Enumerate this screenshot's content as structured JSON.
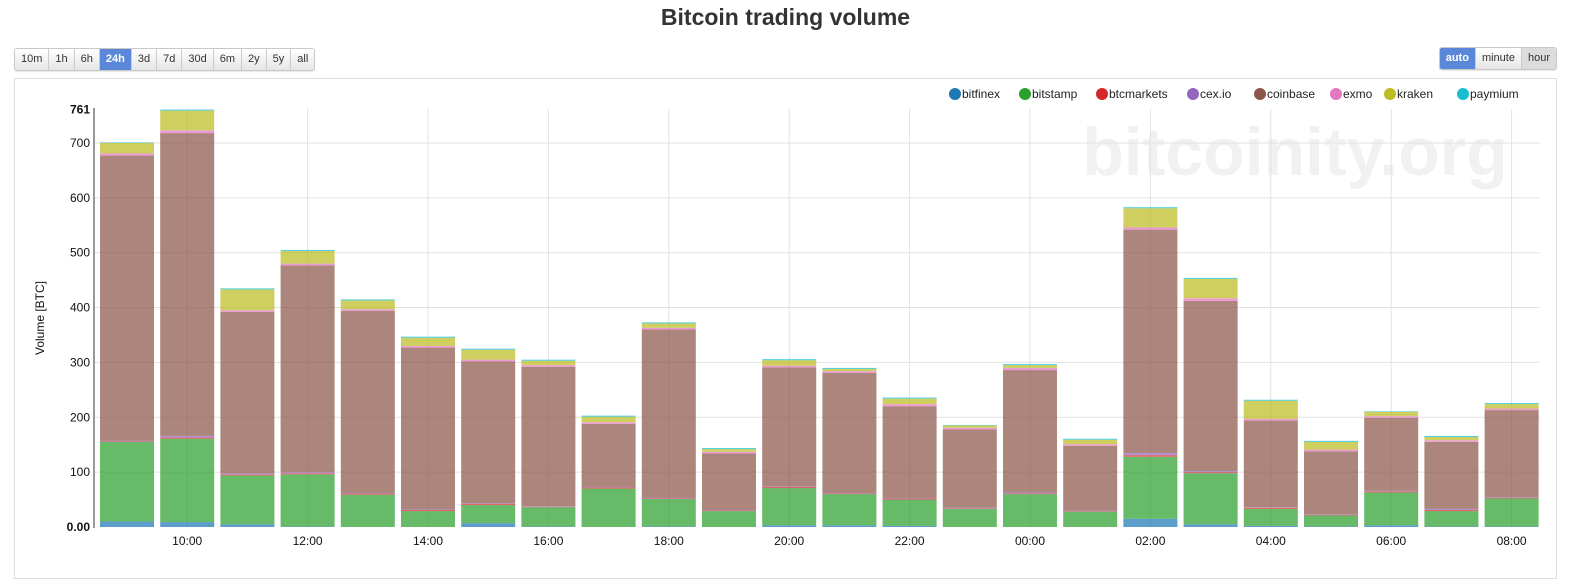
{
  "title": "Bitcoin trading volume",
  "range_buttons": [
    {
      "label": "10m",
      "active": false
    },
    {
      "label": "1h",
      "active": false
    },
    {
      "label": "6h",
      "active": false
    },
    {
      "label": "24h",
      "active": true
    },
    {
      "label": "3d",
      "active": false
    },
    {
      "label": "7d",
      "active": false
    },
    {
      "label": "30d",
      "active": false
    },
    {
      "label": "6m",
      "active": false
    },
    {
      "label": "2y",
      "active": false
    },
    {
      "label": "5y",
      "active": false
    },
    {
      "label": "all",
      "active": false
    }
  ],
  "resolution_buttons": [
    {
      "label": "auto",
      "active": true
    },
    {
      "label": "minute",
      "active": false
    },
    {
      "label": "hour",
      "active": false
    }
  ],
  "watermark": "bitcoinity.org",
  "chart_data": {
    "type": "bar",
    "stacked": true,
    "title": "Bitcoin trading volume",
    "ylabel": "Volume [BTC]",
    "xlabel": "",
    "ylim": [
      0,
      761
    ],
    "y_ticks": [
      "0.00",
      "100",
      "200",
      "300",
      "400",
      "500",
      "600",
      "700",
      "761"
    ],
    "x_tick_labels": [
      "10:00",
      "12:00",
      "14:00",
      "16:00",
      "18:00",
      "20:00",
      "22:00",
      "00:00",
      "02:00",
      "04:00",
      "06:00",
      "08:00"
    ],
    "grid": true,
    "legend_position": "top-right",
    "categories": [
      "09:00",
      "10:00",
      "11:00",
      "12:00",
      "13:00",
      "14:00",
      "15:00",
      "16:00",
      "17:00",
      "18:00",
      "19:00",
      "20:00",
      "21:00",
      "22:00",
      "23:00",
      "00:00",
      "01:00",
      "02:00",
      "03:00",
      "04:00",
      "05:00",
      "06:00",
      "07:00",
      "08:00"
    ],
    "series": [
      {
        "name": "bitfinex",
        "color": "#1f77b4",
        "values": [
          10,
          9,
          5,
          1,
          0,
          0,
          7,
          1,
          0,
          1,
          0,
          3,
          3,
          2,
          0,
          0,
          0,
          15,
          5,
          2,
          1,
          3,
          1,
          1
        ]
      },
      {
        "name": "bitstamp",
        "color": "#2ca02c",
        "values": [
          145,
          152,
          89,
          95,
          59,
          29,
          33,
          35,
          70,
          50,
          29,
          68,
          57,
          48,
          33,
          60,
          28,
          113,
          93,
          31,
          20,
          60,
          28,
          51
        ]
      },
      {
        "name": "btcmarkets",
        "color": "#d62728",
        "values": [
          1,
          2,
          2,
          2,
          2,
          2,
          2,
          1,
          2,
          1,
          1,
          2,
          1,
          2,
          1,
          1,
          1,
          3,
          2,
          2,
          1,
          2,
          2,
          1
        ]
      },
      {
        "name": "cex.io",
        "color": "#9467bd",
        "values": [
          1,
          3,
          2,
          2,
          1,
          1,
          1,
          1,
          1,
          1,
          1,
          1,
          1,
          1,
          1,
          2,
          1,
          4,
          2,
          1,
          1,
          1,
          2,
          1
        ]
      },
      {
        "name": "coinbase",
        "color": "#8c564b",
        "values": [
          520,
          552,
          294,
          377,
          332,
          295,
          259,
          254,
          115,
          307,
          103,
          217,
          219,
          167,
          143,
          223,
          118,
          407,
          310,
          158,
          115,
          133,
          122,
          159
        ]
      },
      {
        "name": "exmo",
        "color": "#e377c2",
        "values": [
          4,
          5,
          3,
          3,
          3,
          3,
          3,
          3,
          3,
          3,
          3,
          3,
          3,
          4,
          3,
          4,
          3,
          4,
          5,
          3,
          3,
          3,
          3,
          3
        ]
      },
      {
        "name": "kraken",
        "color": "#bcbd22",
        "values": [
          19,
          36,
          38,
          23,
          16,
          15,
          18,
          8,
          10,
          8,
          5,
          10,
          4,
          10,
          4,
          5,
          8,
          35,
          35,
          33,
          14,
          8,
          6,
          8
        ]
      },
      {
        "name": "paymium",
        "color": "#17becf",
        "values": [
          1,
          2,
          2,
          2,
          2,
          2,
          2,
          2,
          2,
          2,
          2,
          2,
          2,
          2,
          1,
          2,
          2,
          2,
          2,
          2,
          2,
          1,
          2,
          2
        ]
      }
    ]
  }
}
